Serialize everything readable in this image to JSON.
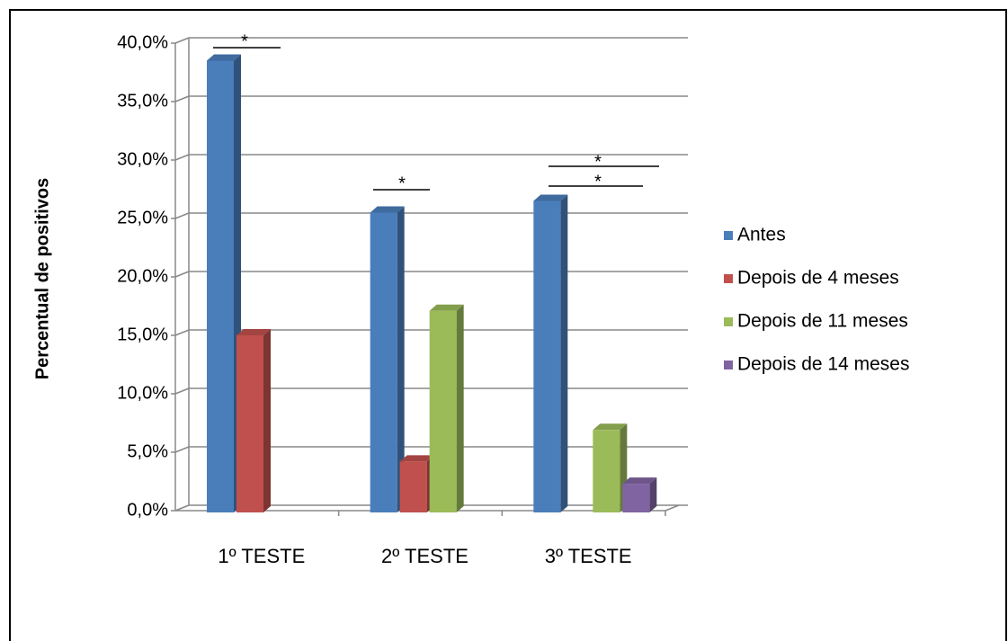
{
  "chart_data": {
    "type": "bar3d",
    "y_label": "Percentual de positivos",
    "categories": [
      "1º TESTE",
      "2º TESTE",
      "3º TESTE"
    ],
    "series": [
      {
        "name": "Antes",
        "color": "#4a7ebb",
        "values": [
          38.5,
          25.5,
          26.5
        ]
      },
      {
        "name": "Depois de 4 meses",
        "color": "#c0504d",
        "values": [
          15.0,
          4.2,
          null
        ]
      },
      {
        "name": "Depois de 11 meses",
        "color": "#9bbb59",
        "values": [
          null,
          17.1,
          6.9
        ]
      },
      {
        "name": "Depois de 14 meses",
        "color": "#8064a2",
        "values": [
          null,
          null,
          2.3
        ]
      }
    ],
    "ylim": [
      0,
      40
    ],
    "yticks": [
      {
        "value": 0,
        "label": "0,0%"
      },
      {
        "value": 5,
        "label": "5,0%"
      },
      {
        "value": 10,
        "label": "10,0%"
      },
      {
        "value": 15,
        "label": "15,0%"
      },
      {
        "value": 20,
        "label": "20,0%"
      },
      {
        "value": 25,
        "label": "25,0%"
      },
      {
        "value": 30,
        "label": "30,0%"
      },
      {
        "value": 35,
        "label": "35,0%"
      },
      {
        "value": 40,
        "label": "40,0%"
      }
    ],
    "grid": true,
    "legend": "right",
    "annotations": [
      "*",
      "*",
      "*",
      "*"
    ]
  }
}
